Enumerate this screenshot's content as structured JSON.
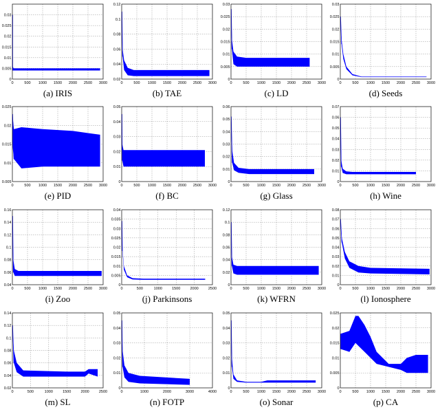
{
  "figure": {
    "chart_data": [
      {
        "type": "area",
        "caption": "(a) IRIS",
        "xlim": [
          0,
          3000
        ],
        "ylim": [
          0,
          0.035
        ],
        "xticks": [
          "0",
          "500",
          "1000",
          "1500",
          "2000",
          "2500",
          "3000"
        ],
        "yticks": [
          "0",
          "0.005",
          "0.01",
          "0.015",
          "0.02",
          "0.025",
          "0.03"
        ],
        "x": [
          0,
          10,
          40,
          2900
        ],
        "upper": [
          0.03,
          0.006,
          0.005,
          0.005
        ],
        "lower": [
          0.03,
          0.004,
          0.004,
          0.004
        ]
      },
      {
        "type": "area",
        "caption": "(b) TAE",
        "xlim": [
          0,
          3000
        ],
        "ylim": [
          0.02,
          0.12
        ],
        "xticks": [
          "0",
          "500",
          "1000",
          "1500",
          "2000",
          "2500",
          "3000"
        ],
        "yticks": [
          "0.02",
          "0.04",
          "0.06",
          "0.08",
          "0.1",
          "0.12"
        ],
        "x": [
          0,
          30,
          80,
          200,
          400,
          2900
        ],
        "upper": [
          0.11,
          0.06,
          0.045,
          0.035,
          0.032,
          0.032
        ],
        "lower": [
          0.11,
          0.05,
          0.032,
          0.025,
          0.024,
          0.024
        ]
      },
      {
        "type": "area",
        "caption": "(c) LD",
        "xlim": [
          0,
          3000
        ],
        "ylim": [
          0,
          0.03
        ],
        "xticks": [
          "0",
          "500",
          "1000",
          "1500",
          "2000",
          "2500",
          "3000"
        ],
        "yticks": [
          "0",
          "0.005",
          "0.01",
          "0.015",
          "0.02",
          "0.025",
          "0.03"
        ],
        "x": [
          0,
          30,
          80,
          200,
          500,
          2600
        ],
        "upper": [
          0.028,
          0.016,
          0.011,
          0.009,
          0.0085,
          0.0085
        ],
        "lower": [
          0.028,
          0.012,
          0.006,
          0.005,
          0.005,
          0.005
        ]
      },
      {
        "type": "area",
        "caption": "(d) Seeds",
        "xlim": [
          0,
          3000
        ],
        "ylim": [
          0,
          0.03
        ],
        "xticks": [
          "0",
          "500",
          "1000",
          "1500",
          "2000",
          "2500",
          "3000"
        ],
        "yticks": [
          "0",
          "0.005",
          "0.01",
          "0.015",
          "0.02",
          "0.025",
          "0.03"
        ],
        "x": [
          0,
          40,
          100,
          200,
          400,
          700,
          2850
        ],
        "upper": [
          0.025,
          0.016,
          0.01,
          0.005,
          0.002,
          0.001,
          0.001
        ],
        "lower": [
          0.025,
          0.014,
          0.008,
          0.004,
          0.0015,
          0.0008,
          0.0008
        ]
      },
      {
        "type": "area",
        "caption": "(e) PID",
        "xlim": [
          0,
          3000
        ],
        "ylim": [
          0.005,
          0.025
        ],
        "xticks": [
          "0",
          "500",
          "1000",
          "1500",
          "2000",
          "2500",
          "3000"
        ],
        "yticks": [
          "0.005",
          "0.01",
          "0.015",
          "0.02",
          "0.025"
        ],
        "x": [
          0,
          50,
          300,
          1000,
          2000,
          2900
        ],
        "upper": [
          0.023,
          0.019,
          0.0195,
          0.019,
          0.0185,
          0.0175
        ],
        "lower": [
          0.015,
          0.011,
          0.0085,
          0.009,
          0.009,
          0.009
        ]
      },
      {
        "type": "area",
        "caption": "(f) BC",
        "xlim": [
          0,
          3000
        ],
        "ylim": [
          0,
          0.05
        ],
        "xticks": [
          "0",
          "500",
          "1000",
          "1500",
          "2000",
          "2500",
          "3000"
        ],
        "yticks": [
          "0",
          "0.01",
          "0.02",
          "0.03",
          "0.04",
          "0.05"
        ],
        "x": [
          0,
          20,
          60,
          150,
          2750
        ],
        "upper": [
          0.045,
          0.025,
          0.021,
          0.021,
          0.021
        ],
        "lower": [
          0.045,
          0.014,
          0.01,
          0.01,
          0.01
        ]
      },
      {
        "type": "area",
        "caption": "(g) Glass",
        "xlim": [
          0,
          3000
        ],
        "ylim": [
          0,
          0.06
        ],
        "xticks": [
          "0",
          "500",
          "1000",
          "1500",
          "2000",
          "2500",
          "3000"
        ],
        "yticks": [
          "0",
          "0.01",
          "0.02",
          "0.03",
          "0.04",
          "0.05",
          "0.06"
        ],
        "x": [
          0,
          40,
          100,
          250,
          600,
          2750
        ],
        "upper": [
          0.052,
          0.025,
          0.015,
          0.011,
          0.01,
          0.01
        ],
        "lower": [
          0.052,
          0.015,
          0.009,
          0.007,
          0.006,
          0.006
        ]
      },
      {
        "type": "area",
        "caption": "(h) Wine",
        "xlim": [
          0,
          3000
        ],
        "ylim": [
          0,
          0.07
        ],
        "xticks": [
          "0",
          "500",
          "1000",
          "1500",
          "2000",
          "2500",
          "3000"
        ],
        "yticks": [
          "0",
          "0.01",
          "0.02",
          "0.03",
          "0.04",
          "0.05",
          "0.06",
          "0.07"
        ],
        "x": [
          0,
          30,
          80,
          200,
          400,
          2500
        ],
        "upper": [
          0.06,
          0.02,
          0.012,
          0.0095,
          0.009,
          0.009
        ],
        "lower": [
          0.06,
          0.014,
          0.008,
          0.0068,
          0.0068,
          0.0068
        ]
      },
      {
        "type": "area",
        "caption": "(i) Zoo",
        "xlim": [
          0,
          3000
        ],
        "ylim": [
          0.04,
          0.16
        ],
        "xticks": [
          "0",
          "500",
          "1000",
          "1500",
          "2000",
          "2500",
          "3000"
        ],
        "yticks": [
          "0.04",
          "0.06",
          "0.08",
          "0.1",
          "0.12",
          "0.14",
          "0.16"
        ],
        "x": [
          0,
          30,
          80,
          200,
          2950
        ],
        "upper": [
          0.15,
          0.08,
          0.065,
          0.062,
          0.062
        ],
        "lower": [
          0.15,
          0.06,
          0.054,
          0.054,
          0.054
        ]
      },
      {
        "type": "area",
        "caption": "(j) Parkinsons",
        "xlim": [
          0,
          2500
        ],
        "ylim": [
          0,
          0.04
        ],
        "xticks": [
          "0",
          "500",
          "1000",
          "1500",
          "2000",
          "2500"
        ],
        "yticks": [
          "0",
          "0.005",
          "0.01",
          "0.015",
          "0.02",
          "0.025",
          "0.03",
          "0.035",
          "0.04"
        ],
        "x": [
          0,
          20,
          60,
          150,
          300,
          600,
          2300
        ],
        "upper": [
          0.034,
          0.02,
          0.01,
          0.005,
          0.0035,
          0.0032,
          0.0032
        ],
        "lower": [
          0.034,
          0.018,
          0.008,
          0.004,
          0.0028,
          0.0026,
          0.0026
        ]
      },
      {
        "type": "area",
        "caption": "(k) WFRN",
        "xlim": [
          0,
          3000
        ],
        "ylim": [
          0,
          0.12
        ],
        "xticks": [
          "0",
          "500",
          "1000",
          "1500",
          "2000",
          "2500",
          "3000"
        ],
        "yticks": [
          "0",
          "0.02",
          "0.04",
          "0.06",
          "0.08",
          "0.1",
          "0.12"
        ],
        "x": [
          0,
          30,
          80,
          200,
          2900
        ],
        "upper": [
          0.1,
          0.045,
          0.032,
          0.03,
          0.03
        ],
        "lower": [
          0.1,
          0.03,
          0.018,
          0.016,
          0.016
        ]
      },
      {
        "type": "area",
        "caption": "(l) Ionosphere",
        "xlim": [
          0,
          3000
        ],
        "ylim": [
          0,
          0.08
        ],
        "xticks": [
          "0",
          "500",
          "1000",
          "1500",
          "2000",
          "2500",
          "3000"
        ],
        "yticks": [
          "0",
          "0.01",
          "0.02",
          "0.03",
          "0.04",
          "0.05",
          "0.06",
          "0.07",
          "0.08"
        ],
        "x": [
          0,
          50,
          150,
          300,
          600,
          1000,
          2950
        ],
        "upper": [
          0.07,
          0.05,
          0.035,
          0.025,
          0.02,
          0.018,
          0.017
        ],
        "lower": [
          0.07,
          0.045,
          0.028,
          0.018,
          0.013,
          0.012,
          0.011
        ]
      },
      {
        "type": "area",
        "caption": "(m) SL",
        "xlim": [
          0,
          2500
        ],
        "ylim": [
          0.02,
          0.14
        ],
        "xticks": [
          "0",
          "500",
          "1000",
          "1500",
          "2000",
          "2500"
        ],
        "yticks": [
          "0.02",
          "0.04",
          "0.06",
          "0.08",
          "0.1",
          "0.12",
          "0.14"
        ],
        "x": [
          0,
          40,
          120,
          300,
          1500,
          2000,
          2100,
          2350
        ],
        "upper": [
          0.12,
          0.08,
          0.06,
          0.048,
          0.046,
          0.046,
          0.05,
          0.05
        ],
        "lower": [
          0.12,
          0.06,
          0.045,
          0.038,
          0.038,
          0.038,
          0.043,
          0.038
        ]
      },
      {
        "type": "area",
        "caption": "(n) FOTP",
        "xlim": [
          0,
          4000
        ],
        "ylim": [
          0,
          0.05
        ],
        "xticks": [
          "0",
          "1000",
          "2000",
          "3000",
          "4000"
        ],
        "yticks": [
          "0",
          "0.01",
          "0.02",
          "0.03",
          "0.04",
          "0.05"
        ],
        "x": [
          0,
          40,
          120,
          300,
          800,
          3000
        ],
        "upper": [
          0.045,
          0.025,
          0.015,
          0.01,
          0.008,
          0.006
        ],
        "lower": [
          0.045,
          0.014,
          0.007,
          0.004,
          0.003,
          0.002
        ]
      },
      {
        "type": "area",
        "caption": "(o) Sonar",
        "xlim": [
          0,
          3000
        ],
        "ylim": [
          0,
          0.05
        ],
        "xticks": [
          "0",
          "500",
          "1000",
          "1500",
          "2000",
          "2500",
          "3000"
        ],
        "yticks": [
          "0",
          "0.01",
          "0.02",
          "0.03",
          "0.04",
          "0.05"
        ],
        "x": [
          0,
          30,
          80,
          200,
          500,
          1000,
          1200,
          2800
        ],
        "upper": [
          0.045,
          0.02,
          0.009,
          0.005,
          0.004,
          0.004,
          0.005,
          0.005
        ],
        "lower": [
          0.045,
          0.014,
          0.006,
          0.004,
          0.0035,
          0.0035,
          0.0035,
          0.0035
        ]
      },
      {
        "type": "area",
        "caption": "(p) CA",
        "xlim": [
          0,
          3000
        ],
        "ylim": [
          0,
          0.025
        ],
        "xticks": [
          "0",
          "500",
          "1000",
          "1500",
          "2000",
          "2500",
          "3000"
        ],
        "yticks": [
          "0",
          "0.005",
          "0.01",
          "0.015",
          "0.02",
          "0.025"
        ],
        "x": [
          0,
          300,
          500,
          600,
          800,
          1000,
          1200,
          1600,
          2000,
          2200,
          2500,
          2900
        ],
        "upper": [
          0.018,
          0.019,
          0.024,
          0.024,
          0.021,
          0.017,
          0.012,
          0.008,
          0.008,
          0.01,
          0.011,
          0.011
        ],
        "lower": [
          0.013,
          0.012,
          0.015,
          0.014,
          0.012,
          0.01,
          0.008,
          0.007,
          0.006,
          0.005,
          0.005,
          0.005
        ]
      }
    ]
  }
}
